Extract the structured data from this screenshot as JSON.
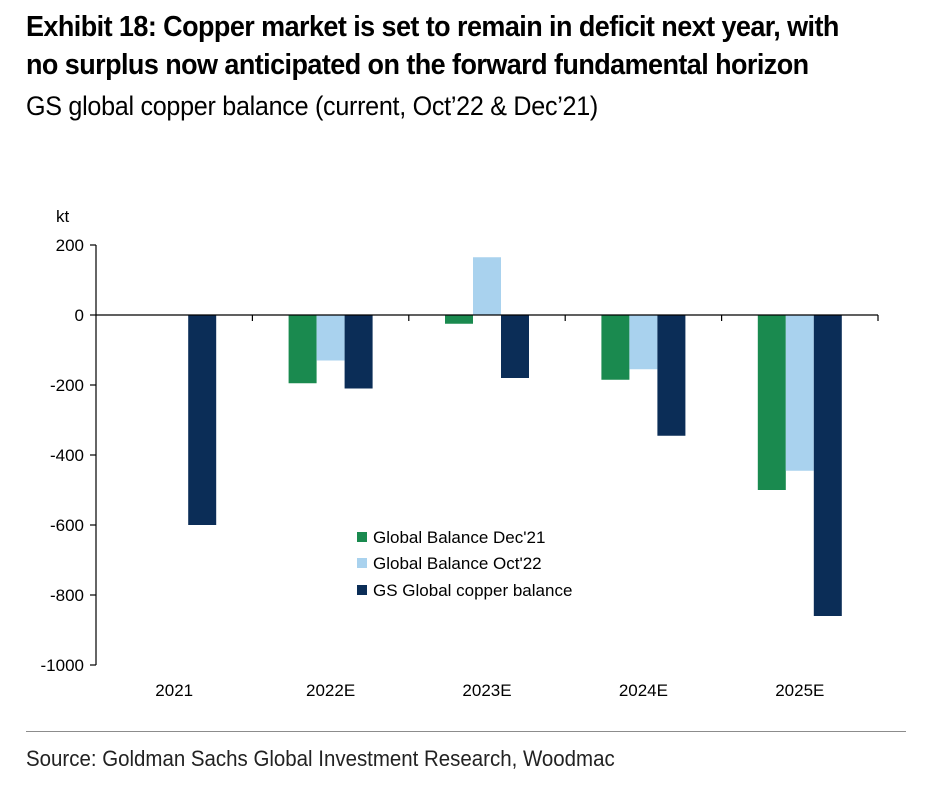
{
  "header": {
    "title_line1": "Exhibit 18: Copper market is set to remain in deficit next year, with",
    "title_line2": "no surplus now anticipated on the forward fundamental horizon",
    "subtitle": "GS global copper balance (current, Oct’22 & Dec’21)"
  },
  "footer": {
    "source": "Source: Goldman Sachs Global Investment Research, Woodmac"
  },
  "chart_data": {
    "type": "bar",
    "unit_label": "kt",
    "categories": [
      "2021",
      "2022E",
      "2023E",
      "2024E",
      "2025E"
    ],
    "series": [
      {
        "name": "Global Balance Dec'21",
        "color": "#1a8a4f",
        "values": [
          null,
          -195,
          -25,
          -185,
          -500
        ]
      },
      {
        "name": "Global Balance Oct'22",
        "color": "#a9d2ee",
        "values": [
          null,
          -130,
          165,
          -155,
          -445
        ]
      },
      {
        "name": "GS Global copper balance",
        "color": "#0b2d57",
        "values": [
          -600,
          -210,
          -180,
          -345,
          -860
        ]
      }
    ],
    "ylim": [
      -1000,
      200
    ],
    "yticks": [
      200,
      0,
      -200,
      -400,
      -600,
      -800,
      -1000
    ],
    "ytick_labels": [
      "200",
      "0",
      "-200",
      "-400",
      "-600",
      "-800",
      "-1000"
    ],
    "grid": false,
    "legend_position": "lower-center"
  }
}
